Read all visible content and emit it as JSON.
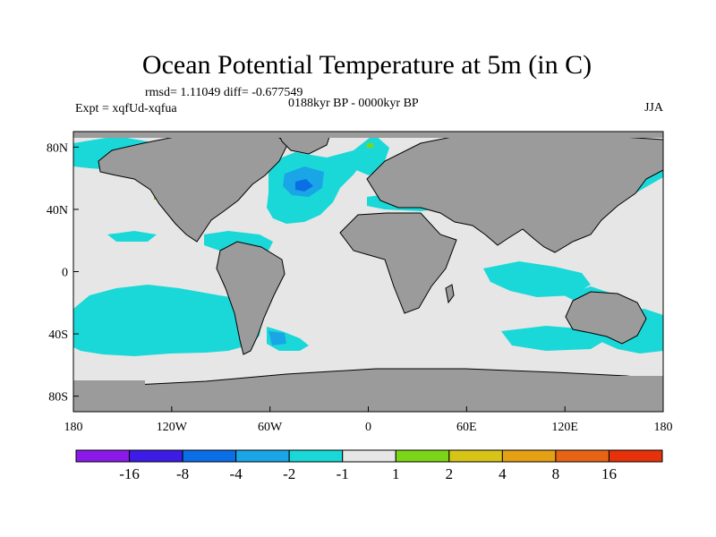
{
  "chart_data": {
    "type": "heatmap",
    "title": "Ocean Potential Temperature at 5m (in C)",
    "stats_text": "rmsd= 1.11049  diff= -0.677549",
    "period_text": "0188kyr BP - 0000kyr BP",
    "experiment_text": "Expt = xqfUd-xqfua",
    "season_text": "JJA",
    "x_range": [
      -180,
      180
    ],
    "y_range": [
      -90,
      90
    ],
    "x_ticks": [
      {
        "value": -180,
        "label": "180"
      },
      {
        "value": -120,
        "label": "120W"
      },
      {
        "value": -60,
        "label": "60W"
      },
      {
        "value": 0,
        "label": "0"
      },
      {
        "value": 60,
        "label": "60E"
      },
      {
        "value": 120,
        "label": "120E"
      },
      {
        "value": 180,
        "label": "180"
      }
    ],
    "y_ticks": [
      {
        "value": 80,
        "label": "80N"
      },
      {
        "value": 40,
        "label": "40N"
      },
      {
        "value": 0,
        "label": "0"
      },
      {
        "value": -40,
        "label": "40S"
      },
      {
        "value": -80,
        "label": "80S"
      }
    ],
    "colorbar": {
      "colors": [
        "#8b1ae8",
        "#3c1ce6",
        "#0a6ee6",
        "#1aa6e6",
        "#1ad8d8",
        "#e6e6e6",
        "#7cd617",
        "#d6c417",
        "#e6a014",
        "#e66414",
        "#e6320a"
      ],
      "labels": [
        "-16",
        "-8",
        "-4",
        "-2",
        "-1",
        "1",
        "2",
        "4",
        "8",
        "16"
      ]
    },
    "land_color": "#9b9b9b",
    "ocean_base_color": "#e6e6e6"
  }
}
